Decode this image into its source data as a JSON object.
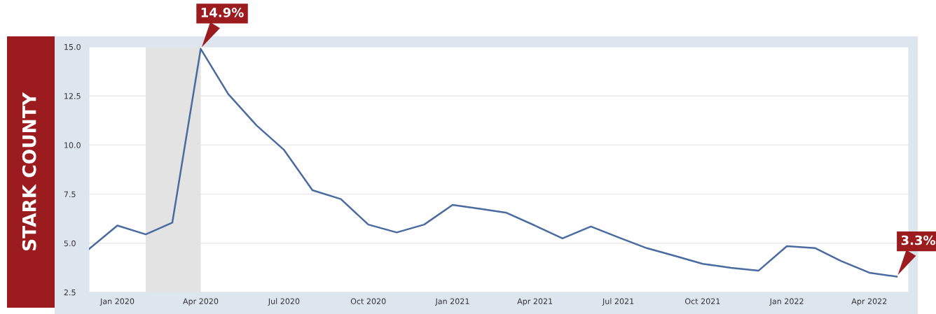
{
  "chart_data": {
    "type": "line",
    "title": "STARK COUNTY",
    "x": [
      "2019-12",
      "2020-01",
      "2020-02",
      "2020-03",
      "2020-04",
      "2020-05",
      "2020-06",
      "2020-07",
      "2020-08",
      "2020-09",
      "2020-10",
      "2020-11",
      "2020-12",
      "2021-01",
      "2021-02",
      "2021-03",
      "2021-04",
      "2021-05",
      "2021-06",
      "2021-07",
      "2021-08",
      "2021-09",
      "2021-10",
      "2021-11",
      "2021-12",
      "2022-01",
      "2022-02",
      "2022-03",
      "2022-04",
      "2022-05"
    ],
    "series": [
      {
        "color": "#4a6b9f",
        "values": [
          4.7,
          5.9,
          5.45,
          6.05,
          14.9,
          12.6,
          11.0,
          9.75,
          7.7,
          7.25,
          5.95,
          5.55,
          5.95,
          6.95,
          6.75,
          6.55,
          5.9,
          5.25,
          5.85,
          5.3,
          4.75,
          4.35,
          3.95,
          3.75,
          3.6,
          4.85,
          4.75,
          4.1,
          3.5,
          3.3
        ]
      }
    ],
    "xlim": [
      "2019-12",
      "2022-05-14"
    ],
    "xticks": [
      {
        "value": "2020-01",
        "label": "Jan 2020"
      },
      {
        "value": "2020-04",
        "label": "Apr 2020"
      },
      {
        "value": "2020-07",
        "label": "Jul 2020"
      },
      {
        "value": "2020-10",
        "label": "Oct 2020"
      },
      {
        "value": "2021-01",
        "label": "Jan 2021"
      },
      {
        "value": "2021-04",
        "label": "Apr 2021"
      },
      {
        "value": "2021-07",
        "label": "Jul 2021"
      },
      {
        "value": "2021-10",
        "label": "Oct 2021"
      },
      {
        "value": "2022-01",
        "label": "Jan 2022"
      },
      {
        "value": "2022-04",
        "label": "Apr 2022"
      }
    ],
    "ylim": [
      2.5,
      15.0
    ],
    "yticks": [
      {
        "value": 2.5,
        "label": "2.5"
      },
      {
        "value": 5.0,
        "label": "5.0"
      },
      {
        "value": 7.5,
        "label": "7.5"
      },
      {
        "value": 10.0,
        "label": "10.0"
      },
      {
        "value": 12.5,
        "label": "12.5"
      },
      {
        "value": 15.0,
        "label": "15.0"
      }
    ],
    "bands": [
      {
        "axis": "x",
        "from": "2020-02",
        "to": "2020-04",
        "color": "#e3e3e3"
      }
    ],
    "annotations": [
      {
        "text": "14.9%",
        "x": "2020-04",
        "y": 14.9
      },
      {
        "text": "3.3%",
        "x": "2022-05",
        "y": 3.3
      }
    ],
    "grid": "y",
    "marker": "none",
    "line_style": "solid"
  }
}
